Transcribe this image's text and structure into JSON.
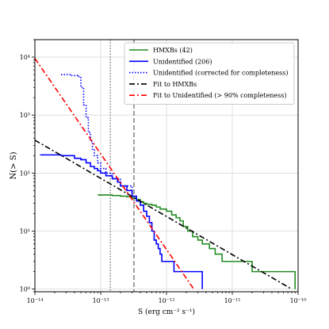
{
  "chart_data": {
    "type": "line",
    "xlabel": "S (erg cm⁻² s⁻¹)",
    "ylabel": "N(> S)",
    "x_scale": "log",
    "y_scale": "log",
    "xlim": [
      1e-14,
      1e-10
    ],
    "ylim": [
      0.9,
      20000
    ],
    "x_ticks": [
      1e-14,
      1e-13,
      1e-12,
      1e-11,
      1e-10
    ],
    "x_tick_labels": [
      "10⁻¹⁴",
      "10⁻¹³",
      "10⁻¹²",
      "10⁻¹¹",
      "10⁻¹⁰"
    ],
    "y_ticks": [
      1,
      10,
      100,
      1000,
      10000
    ],
    "y_tick_labels": [
      "10⁰",
      "10¹",
      "10²",
      "10³",
      "10⁴"
    ],
    "grid": true,
    "legend_position": "top-right",
    "vlines": [
      {
        "x": 1.4e-13,
        "style": "dotted",
        "color": "#808080"
      },
      {
        "x": 3.2e-13,
        "style": "dashed",
        "color": "#808080"
      }
    ],
    "series": [
      {
        "name": "HMXBs (42)",
        "style": "step",
        "color": "#228B22",
        "points": [
          [
            9e-14,
            42
          ],
          [
            1.5e-13,
            41
          ],
          [
            2e-13,
            40
          ],
          [
            2.5e-13,
            39
          ],
          [
            3e-13,
            37
          ],
          [
            3.5e-13,
            35
          ],
          [
            4e-13,
            32
          ],
          [
            4.5e-13,
            30
          ],
          [
            5e-13,
            29
          ],
          [
            6e-13,
            28
          ],
          [
            7e-13,
            26
          ],
          [
            8e-13,
            24
          ],
          [
            1e-12,
            22
          ],
          [
            1.2e-12,
            19
          ],
          [
            1.4e-12,
            17
          ],
          [
            1.6e-12,
            15
          ],
          [
            1.8e-12,
            12
          ],
          [
            2.1e-12,
            10
          ],
          [
            2.5e-12,
            8
          ],
          [
            3e-12,
            7
          ],
          [
            3.5e-12,
            6
          ],
          [
            4.5e-12,
            5
          ],
          [
            5.5e-12,
            4
          ],
          [
            7e-12,
            3
          ],
          [
            1.2e-11,
            3
          ],
          [
            2e-11,
            2
          ],
          [
            8e-11,
            2
          ],
          [
            9e-11,
            1
          ]
        ]
      },
      {
        "name": "Unidentified (206)",
        "style": "step",
        "color": "#0000FF",
        "points": [
          [
            1.2e-14,
            206
          ],
          [
            2.5e-14,
            200
          ],
          [
            4e-14,
            180
          ],
          [
            5e-14,
            170
          ],
          [
            6e-14,
            150
          ],
          [
            7e-14,
            130
          ],
          [
            8e-14,
            120
          ],
          [
            9e-14,
            110
          ],
          [
            1e-13,
            100
          ],
          [
            1.2e-13,
            90
          ],
          [
            1.5e-13,
            80
          ],
          [
            1.8e-13,
            70
          ],
          [
            2e-13,
            60
          ],
          [
            2.5e-13,
            50
          ],
          [
            3e-13,
            40
          ],
          [
            3.5e-13,
            33
          ],
          [
            4e-13,
            28
          ],
          [
            4.5e-13,
            22
          ],
          [
            5e-13,
            18
          ],
          [
            5.5e-13,
            14
          ],
          [
            6e-13,
            10
          ],
          [
            6.5e-13,
            7
          ],
          [
            7e-13,
            6
          ],
          [
            7.5e-13,
            5
          ],
          [
            8e-13,
            4
          ],
          [
            8.5e-13,
            3
          ],
          [
            9e-13,
            3
          ],
          [
            1e-12,
            3
          ],
          [
            1.3e-12,
            2
          ],
          [
            2e-12,
            2
          ],
          [
            3.5e-12,
            1
          ]
        ]
      },
      {
        "name": "Unidentified (corrected for completeness)",
        "style": "step-dotted",
        "color": "#0000FF",
        "points": [
          [
            2.5e-14,
            5000
          ],
          [
            3.5e-14,
            4800
          ],
          [
            4.5e-14,
            4600
          ],
          [
            5e-14,
            3000
          ],
          [
            5.5e-14,
            1500
          ],
          [
            6e-14,
            900
          ],
          [
            6.5e-14,
            500
          ],
          [
            7e-14,
            350
          ],
          [
            7.5e-14,
            250
          ],
          [
            8e-14,
            200
          ],
          [
            9e-14,
            150
          ],
          [
            1e-13,
            120
          ],
          [
            1.2e-13,
            100
          ],
          [
            1.5e-13,
            80
          ],
          [
            2e-13,
            60
          ],
          [
            3e-13,
            40
          ]
        ]
      },
      {
        "name": "Fit to HMXBs",
        "style": "dashdot",
        "color": "#000000",
        "points": [
          [
            1e-14,
            370
          ],
          [
            8e-11,
            1
          ]
        ]
      },
      {
        "name": "Fit to Unidentified (> 90% completeness)",
        "style": "dashdot",
        "color": "#FF0000",
        "points": [
          [
            1e-14,
            9500
          ],
          [
            2.6e-12,
            1
          ]
        ]
      }
    ]
  }
}
